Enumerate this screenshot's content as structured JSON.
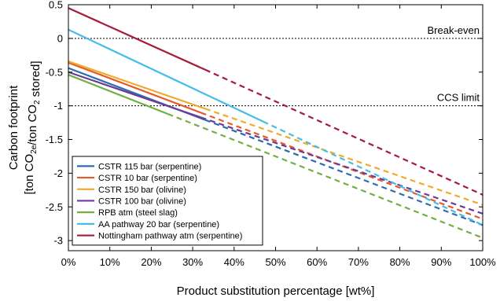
{
  "chart_data": {
    "type": "line",
    "title": "",
    "xlabel": "Product substitution percentage [wt%]",
    "ylabel_line1": "Carbon footprint",
    "ylabel_line2": "[ton CO2e/ton CO2 stored]",
    "xlim": [
      0,
      100
    ],
    "ylim": [
      -3.15,
      0.5
    ],
    "x_ticks": [
      0,
      10,
      20,
      30,
      40,
      50,
      60,
      70,
      80,
      90,
      100
    ],
    "x_tick_labels": [
      "0%",
      "10%",
      "20%",
      "30%",
      "40%",
      "50%",
      "60%",
      "70%",
      "80%",
      "90%",
      "100%"
    ],
    "y_ticks": [
      0.5,
      0,
      -0.5,
      -1,
      -1.5,
      -2,
      -2.5,
      -3
    ],
    "y_tick_labels": [
      "0.5",
      "0",
      "-0.5",
      "-1",
      "-1.5",
      "-2",
      "-2.5",
      "-3"
    ],
    "grid": false,
    "legend_position": "bottom-left",
    "reference_lines": [
      {
        "label": "Break-even",
        "y": 0
      },
      {
        "label": "CCS limit",
        "y": -1
      }
    ],
    "series": [
      {
        "name": "CSTR 115 bar (serpentine)",
        "color": "#2b6cb0",
        "y_at_0": -0.44,
        "y_at_100": -2.77,
        "solid_until": 33
      },
      {
        "name": "CSTR 10 bar (serpentine)",
        "color": "#e8592a",
        "y_at_0": -0.36,
        "y_at_100": -2.68,
        "solid_until": 32
      },
      {
        "name": "CSTR 150 bar (olivine)",
        "color": "#eeab2c",
        "y_at_0": -0.34,
        "y_at_100": -2.47,
        "solid_until": 33
      },
      {
        "name": "CSTR 100 bar (olivine)",
        "color": "#6d3b97",
        "y_at_0": -0.5,
        "y_at_100": -2.6,
        "solid_until": 32
      },
      {
        "name": "RPB atm (steel slag)",
        "color": "#72b043",
        "y_at_0": -0.54,
        "y_at_100": -2.96,
        "solid_until": 24
      },
      {
        "name": "AA pathway 20 bar (serpentine)",
        "color": "#45bde8",
        "y_at_0": 0.13,
        "y_at_100": -2.77,
        "solid_until": 47
      },
      {
        "name": "Nottingham pathway atm (serpentine)",
        "color": "#a51c3a",
        "y_at_0": 0.45,
        "y_at_100": -2.32,
        "solid_until": 33
      }
    ]
  }
}
